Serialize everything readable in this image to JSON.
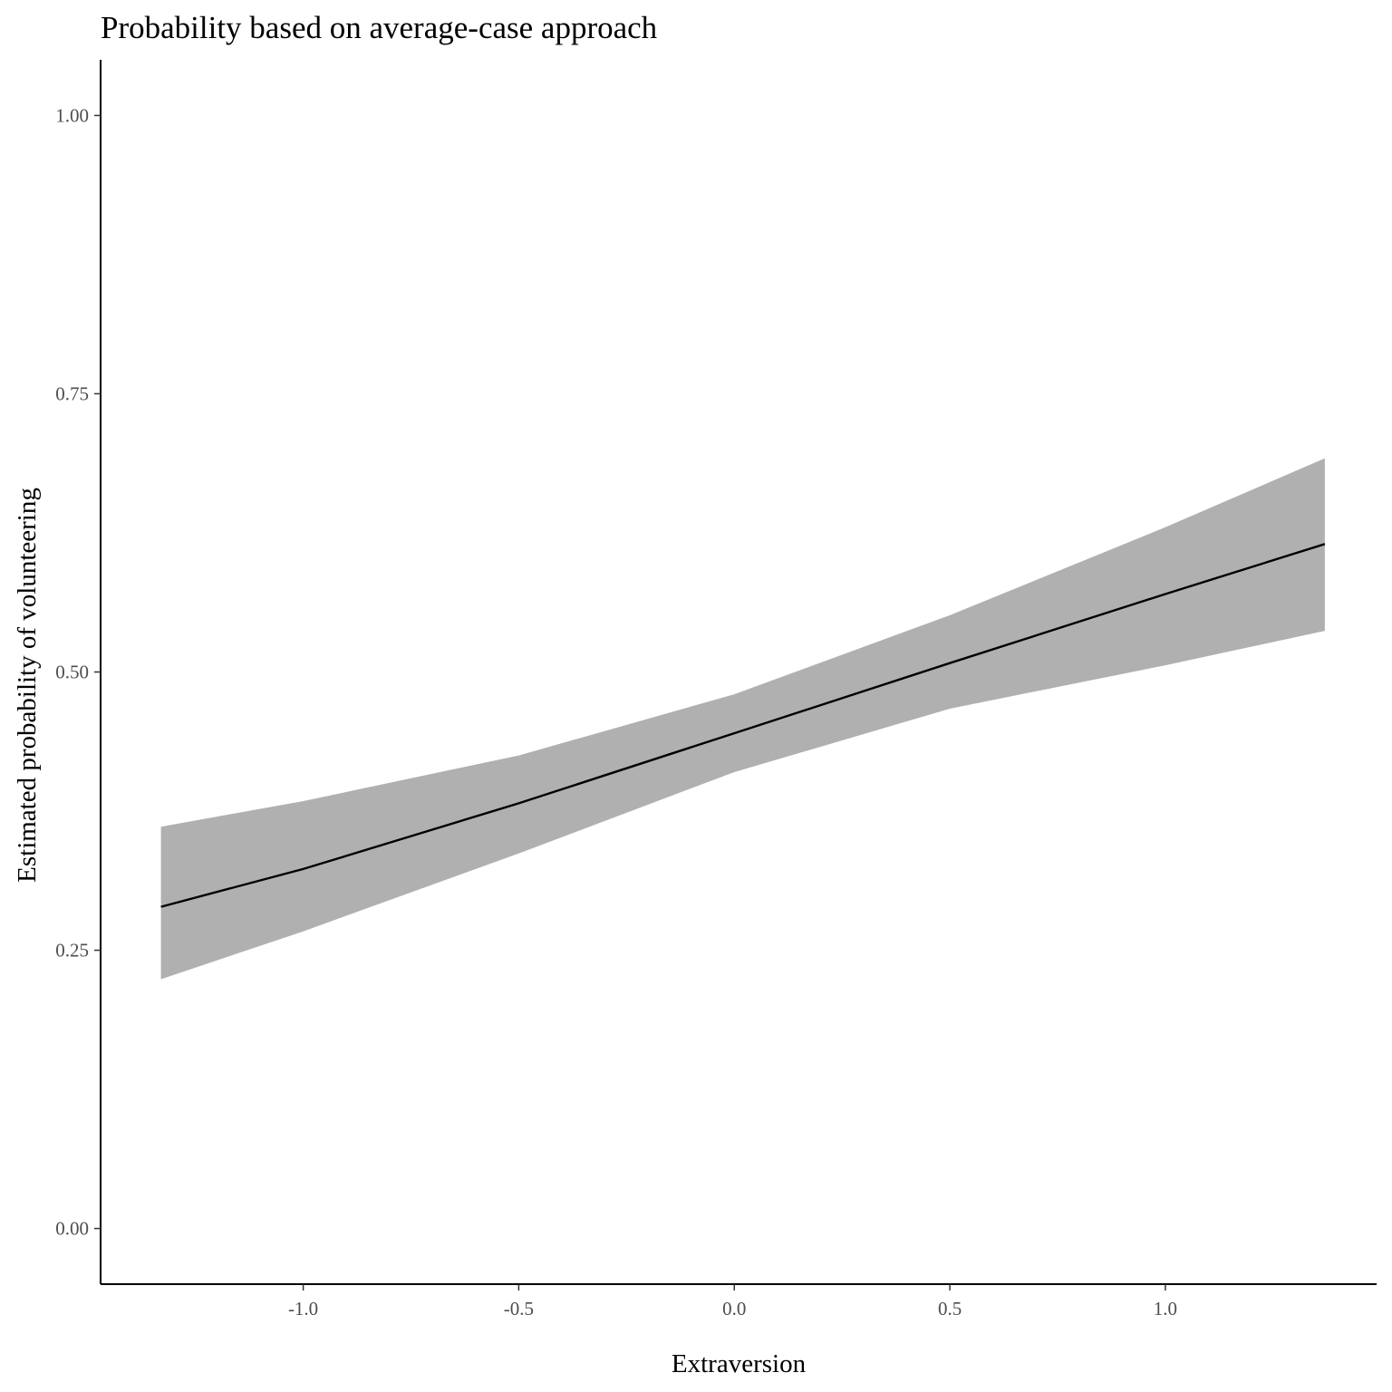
{
  "chart_data": {
    "type": "line",
    "title": "Probability based on average-case approach",
    "xlabel": "Extraversion",
    "ylabel": "Estimated probability of volunteering",
    "x_ticks": [
      "-1.0",
      "-0.5",
      "0.0",
      "0.5",
      "1.0"
    ],
    "y_ticks": [
      "0.00",
      "0.25",
      "0.50",
      "0.75",
      "1.00"
    ],
    "xlim": [
      -1.47,
      1.49
    ],
    "ylim": [
      -0.05,
      1.05
    ],
    "grid": false,
    "legend": "none",
    "series": [
      {
        "x": [
          -1.33,
          -1.0,
          -0.5,
          0.0,
          0.5,
          1.0,
          1.37
        ],
        "y": [
          0.289,
          0.323,
          0.382,
          0.445,
          0.508,
          0.57,
          0.615
        ],
        "lower": [
          0.224,
          0.267,
          0.337,
          0.41,
          0.467,
          0.506,
          0.537
        ],
        "upper": [
          0.361,
          0.384,
          0.425,
          0.48,
          0.551,
          0.63,
          0.692
        ]
      }
    ],
    "colors": {
      "line": "#000000",
      "ribbon": "#b0b0b0",
      "axis": "#000000"
    }
  }
}
